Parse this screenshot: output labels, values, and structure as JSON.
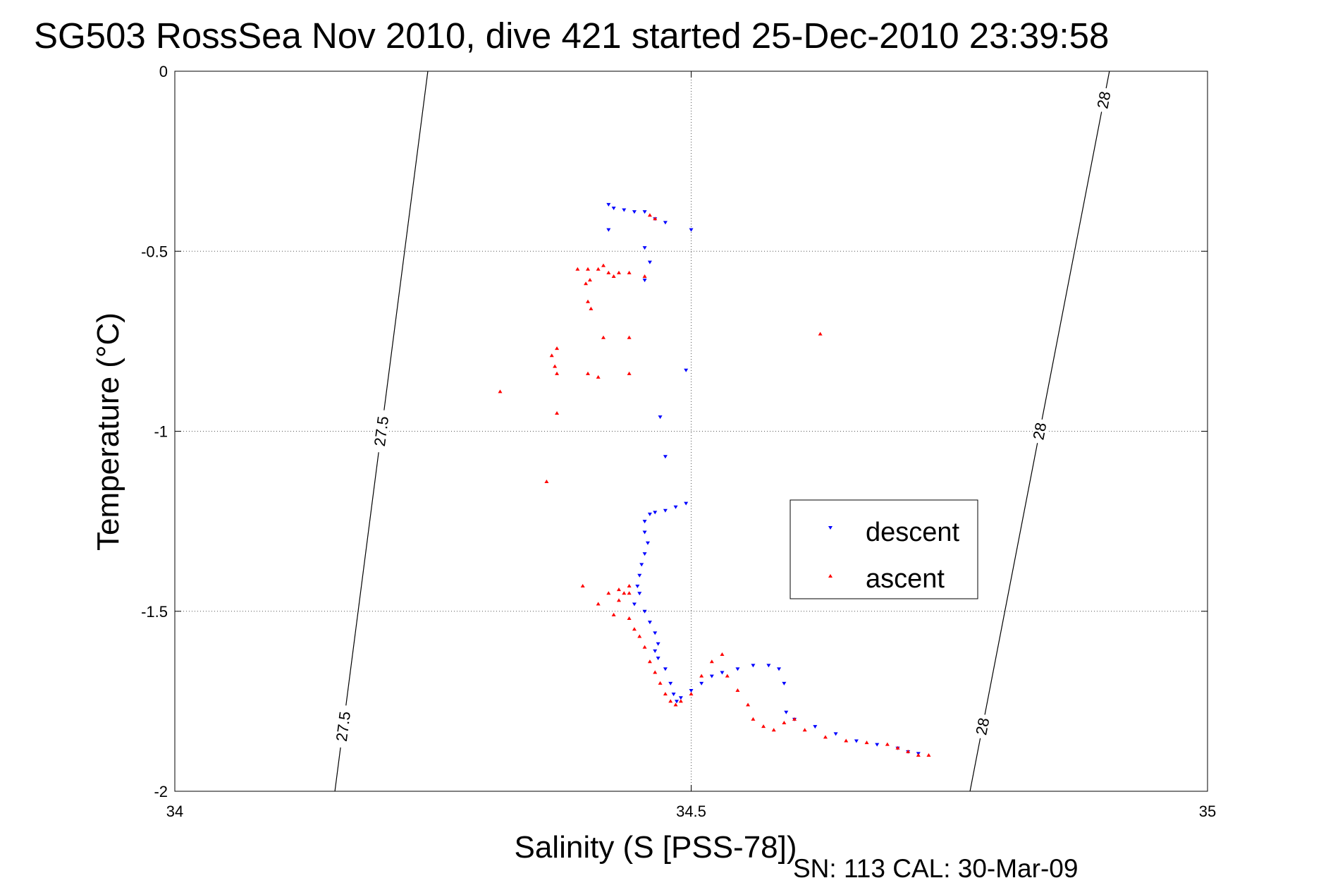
{
  "chart_data": {
    "type": "scatter",
    "title": "SG503 RossSea Nov 2010, dive 421 started 25-Dec-2010 23:39:58",
    "xlabel": "Salinity (S [PSS-78])",
    "ylabel": "Temperature (°C)",
    "xlim": [
      34,
      35
    ],
    "ylim": [
      -2,
      0
    ],
    "x_ticks": [
      "34",
      "34.5",
      "35"
    ],
    "y_ticks": [
      "0",
      "-0.5",
      "-1",
      "-1.5",
      "-2"
    ],
    "grid": true,
    "legend_position": "right",
    "footer": "SN: 113  CAL: 30-Mar-09",
    "isopycnals": [
      {
        "label": "27.5",
        "label_texts": [
          "27.5",
          "27.5"
        ],
        "points": [
          [
            34.245,
            0
          ],
          [
            34.155,
            -2
          ]
        ]
      },
      {
        "label": "28",
        "label_texts": [
          "28",
          "28",
          "28"
        ],
        "points": [
          [
            34.905,
            0
          ],
          [
            34.77,
            -2
          ]
        ]
      }
    ],
    "series": [
      {
        "name": "descent",
        "color": "#0000ff",
        "marker": "triangle-down",
        "points": [
          [
            34.42,
            -0.37
          ],
          [
            34.425,
            -0.38
          ],
          [
            34.435,
            -0.385
          ],
          [
            34.445,
            -0.39
          ],
          [
            34.455,
            -0.39
          ],
          [
            34.465,
            -0.41
          ],
          [
            34.475,
            -0.42
          ],
          [
            34.42,
            -0.44
          ],
          [
            34.5,
            -0.44
          ],
          [
            34.455,
            -0.49
          ],
          [
            34.46,
            -0.53
          ],
          [
            34.455,
            -0.58
          ],
          [
            34.495,
            -0.83
          ],
          [
            34.47,
            -0.96
          ],
          [
            34.475,
            -1.07
          ],
          [
            34.495,
            -1.2
          ],
          [
            34.485,
            -1.21
          ],
          [
            34.475,
            -1.22
          ],
          [
            34.465,
            -1.225
          ],
          [
            34.46,
            -1.23
          ],
          [
            34.455,
            -1.25
          ],
          [
            34.455,
            -1.28
          ],
          [
            34.458,
            -1.31
          ],
          [
            34.455,
            -1.34
          ],
          [
            34.452,
            -1.37
          ],
          [
            34.45,
            -1.4
          ],
          [
            34.448,
            -1.43
          ],
          [
            34.45,
            -1.45
          ],
          [
            34.445,
            -1.48
          ],
          [
            34.455,
            -1.5
          ],
          [
            34.46,
            -1.53
          ],
          [
            34.465,
            -1.56
          ],
          [
            34.468,
            -1.59
          ],
          [
            34.465,
            -1.61
          ],
          [
            34.468,
            -1.63
          ],
          [
            34.475,
            -1.66
          ],
          [
            34.48,
            -1.7
          ],
          [
            34.483,
            -1.73
          ],
          [
            34.486,
            -1.75
          ],
          [
            34.49,
            -1.74
          ],
          [
            34.5,
            -1.72
          ],
          [
            34.51,
            -1.7
          ],
          [
            34.52,
            -1.68
          ],
          [
            34.53,
            -1.67
          ],
          [
            34.545,
            -1.66
          ],
          [
            34.56,
            -1.65
          ],
          [
            34.575,
            -1.65
          ],
          [
            34.585,
            -1.66
          ],
          [
            34.59,
            -1.7
          ],
          [
            34.592,
            -1.78
          ],
          [
            34.6,
            -1.8
          ],
          [
            34.62,
            -1.82
          ],
          [
            34.64,
            -1.84
          ],
          [
            34.66,
            -1.86
          ],
          [
            34.68,
            -1.87
          ],
          [
            34.7,
            -1.88
          ],
          [
            34.71,
            -1.89
          ],
          [
            34.72,
            -1.895
          ]
        ]
      },
      {
        "name": "ascent",
        "color": "#ff0000",
        "marker": "triangle-up",
        "points": [
          [
            34.46,
            -0.4
          ],
          [
            34.465,
            -0.41
          ],
          [
            34.39,
            -0.55
          ],
          [
            34.4,
            -0.55
          ],
          [
            34.41,
            -0.55
          ],
          [
            34.415,
            -0.54
          ],
          [
            34.42,
            -0.56
          ],
          [
            34.425,
            -0.57
          ],
          [
            34.43,
            -0.56
          ],
          [
            34.44,
            -0.56
          ],
          [
            34.455,
            -0.57
          ],
          [
            34.402,
            -0.58
          ],
          [
            34.398,
            -0.59
          ],
          [
            34.4,
            -0.64
          ],
          [
            34.403,
            -0.66
          ],
          [
            34.415,
            -0.74
          ],
          [
            34.44,
            -0.74
          ],
          [
            34.625,
            -0.73
          ],
          [
            34.37,
            -0.77
          ],
          [
            34.365,
            -0.79
          ],
          [
            34.368,
            -0.82
          ],
          [
            34.37,
            -0.84
          ],
          [
            34.4,
            -0.84
          ],
          [
            34.41,
            -0.85
          ],
          [
            34.44,
            -0.84
          ],
          [
            34.315,
            -0.89
          ],
          [
            34.37,
            -0.95
          ],
          [
            34.36,
            -1.14
          ],
          [
            34.395,
            -1.43
          ],
          [
            34.42,
            -1.45
          ],
          [
            34.43,
            -1.44
          ],
          [
            34.435,
            -1.45
          ],
          [
            34.44,
            -1.45
          ],
          [
            34.44,
            -1.43
          ],
          [
            34.43,
            -1.47
          ],
          [
            34.41,
            -1.48
          ],
          [
            34.425,
            -1.51
          ],
          [
            34.44,
            -1.52
          ],
          [
            34.445,
            -1.55
          ],
          [
            34.45,
            -1.57
          ],
          [
            34.455,
            -1.6
          ],
          [
            34.46,
            -1.64
          ],
          [
            34.465,
            -1.67
          ],
          [
            34.47,
            -1.7
          ],
          [
            34.475,
            -1.73
          ],
          [
            34.48,
            -1.75
          ],
          [
            34.485,
            -1.76
          ],
          [
            34.49,
            -1.75
          ],
          [
            34.5,
            -1.73
          ],
          [
            34.51,
            -1.68
          ],
          [
            34.52,
            -1.64
          ],
          [
            34.53,
            -1.62
          ],
          [
            34.535,
            -1.68
          ],
          [
            34.545,
            -1.72
          ],
          [
            34.555,
            -1.76
          ],
          [
            34.56,
            -1.8
          ],
          [
            34.57,
            -1.82
          ],
          [
            34.58,
            -1.83
          ],
          [
            34.59,
            -1.81
          ],
          [
            34.6,
            -1.8
          ],
          [
            34.61,
            -1.83
          ],
          [
            34.63,
            -1.85
          ],
          [
            34.65,
            -1.86
          ],
          [
            34.67,
            -1.865
          ],
          [
            34.69,
            -1.87
          ],
          [
            34.7,
            -1.88
          ],
          [
            34.71,
            -1.89
          ],
          [
            34.72,
            -1.9
          ],
          [
            34.73,
            -1.9
          ]
        ]
      }
    ]
  }
}
